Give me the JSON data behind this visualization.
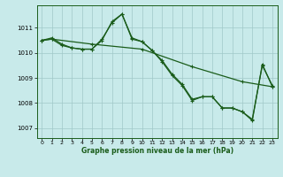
{
  "background_color": "#c8eaea",
  "grid_color": "#a0c8c8",
  "line_color": "#1a5c1a",
  "xlabel": "Graphe pression niveau de la mer (hPa)",
  "ylim": [
    1006.6,
    1011.9
  ],
  "xlim": [
    -0.5,
    23.5
  ],
  "yticks": [
    1007,
    1008,
    1009,
    1010,
    1011
  ],
  "xticks": [
    0,
    1,
    2,
    3,
    4,
    5,
    6,
    7,
    8,
    9,
    10,
    11,
    12,
    13,
    14,
    15,
    16,
    17,
    18,
    19,
    20,
    21,
    22,
    23
  ],
  "series1_x": [
    0,
    1,
    2,
    3,
    4,
    5,
    6,
    7,
    8,
    9,
    10,
    11,
    12,
    13,
    14,
    15,
    16,
    17,
    18,
    19,
    20,
    21,
    22,
    23
  ],
  "series1_y": [
    1010.5,
    1010.6,
    1010.35,
    1010.2,
    1010.15,
    1010.15,
    1010.55,
    1011.2,
    1011.55,
    1010.55,
    1010.45,
    1010.1,
    1009.65,
    1009.1,
    1008.7,
    1008.1,
    1008.25,
    1008.25,
    1007.8,
    1007.8,
    1007.65,
    1007.3,
    1009.55,
    1008.65
  ],
  "series2_x": [
    0,
    1,
    2,
    3,
    4,
    5,
    6,
    7,
    8,
    9,
    10,
    11,
    12,
    13,
    14,
    15,
    16,
    17,
    18,
    19,
    20,
    21,
    22,
    23
  ],
  "series2_y": [
    1010.5,
    1010.55,
    1010.3,
    1010.2,
    1010.15,
    1010.15,
    1010.5,
    1011.25,
    1011.55,
    1010.6,
    1010.45,
    1010.1,
    1009.7,
    1009.15,
    1008.75,
    1008.15,
    1008.25,
    1008.25,
    1007.8,
    1007.8,
    1007.65,
    1007.35,
    1009.5,
    1008.7
  ],
  "series3_x": [
    0,
    1,
    5,
    10,
    15,
    20,
    23
  ],
  "series3_y": [
    1010.5,
    1010.55,
    1010.35,
    1010.15,
    1009.45,
    1008.85,
    1008.65
  ],
  "marker": "+",
  "markersize": 3.5,
  "linewidth": 0.9
}
